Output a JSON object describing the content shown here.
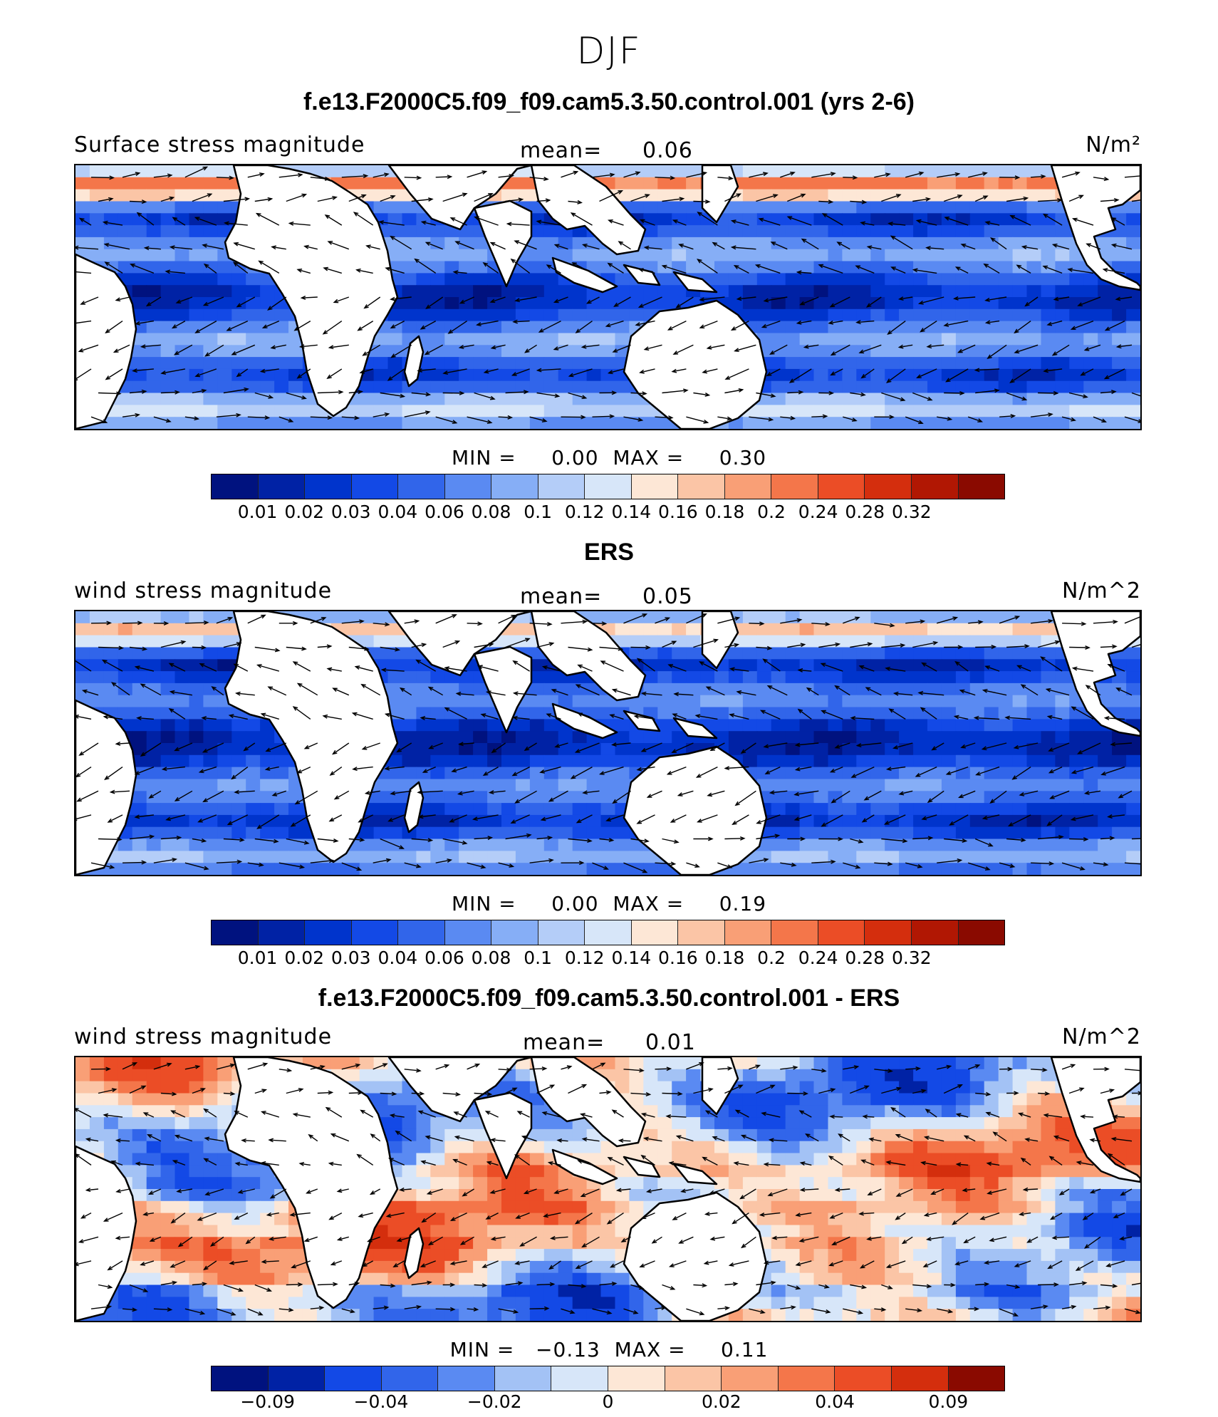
{
  "season": "DJF",
  "panels": [
    {
      "title": "f.e13.F2000C5.f09_f09.cam5.3.50.control.001 (yrs 2-6)",
      "left_label": "Surface stress magnitude",
      "mean_label": "mean=",
      "mean_value": "0.06",
      "units": "N/m²",
      "min_label": "MIN =",
      "min_value": "0.00",
      "max_label": "MAX =",
      "max_value": "0.30",
      "colorbar_ticks": [
        "0.01",
        "0.02",
        "0.03",
        "0.04",
        "0.06",
        "0.08",
        "0.1",
        "0.12",
        "0.14",
        "0.16",
        "0.18",
        "0.2",
        "0.24",
        "0.28",
        "0.32"
      ],
      "colorbar_colors": [
        "#00127f",
        "#0022a5",
        "#0034cc",
        "#1349e6",
        "#3165ea",
        "#5a8af2",
        "#86aef6",
        "#b4cdf8",
        "#d7e6f9",
        "#fde7d6",
        "#fbc5a6",
        "#f99f76",
        "#f4764a",
        "#eb4d26",
        "#d42e0d",
        "#b11703",
        "#8a0a00"
      ],
      "field": "model"
    },
    {
      "title": "ERS",
      "left_label": "wind stress magnitude",
      "mean_label": "mean=",
      "mean_value": "0.05",
      "units": "N/m^2",
      "min_label": "MIN =",
      "min_value": "0.00",
      "max_label": "MAX =",
      "max_value": "0.19",
      "colorbar_ticks": [
        "0.01",
        "0.02",
        "0.03",
        "0.04",
        "0.06",
        "0.08",
        "0.1",
        "0.12",
        "0.14",
        "0.16",
        "0.18",
        "0.2",
        "0.24",
        "0.28",
        "0.32"
      ],
      "colorbar_colors": [
        "#00127f",
        "#0022a5",
        "#0034cc",
        "#1349e6",
        "#3165ea",
        "#5a8af2",
        "#86aef6",
        "#b4cdf8",
        "#d7e6f9",
        "#fde7d6",
        "#fbc5a6",
        "#f99f76",
        "#f4764a",
        "#eb4d26",
        "#d42e0d",
        "#b11703",
        "#8a0a00"
      ],
      "field": "obs"
    },
    {
      "title": "f.e13.F2000C5.f09_f09.cam5.3.50.control.001 - ERS",
      "left_label": "wind stress magnitude",
      "mean_label": "mean=",
      "mean_value": "0.01",
      "units": "N/m^2",
      "min_label": "MIN =",
      "min_value": "−0.13",
      "max_label": "MAX =",
      "max_value": "0.11",
      "colorbar_ticks": [
        "−0.09",
        "−0.04",
        "−0.02",
        "0",
        "0.02",
        "0.04",
        "0.09"
      ],
      "colorbar_colors": [
        "#00127f",
        "#0022a5",
        "#1349e6",
        "#3165ea",
        "#5a8af2",
        "#a3c2f5",
        "#d7e6f9",
        "#fde7d6",
        "#fbc5a6",
        "#f99f76",
        "#f4764a",
        "#eb4d26",
        "#d42e0d",
        "#8a0a00"
      ],
      "field": "diff"
    }
  ]
}
